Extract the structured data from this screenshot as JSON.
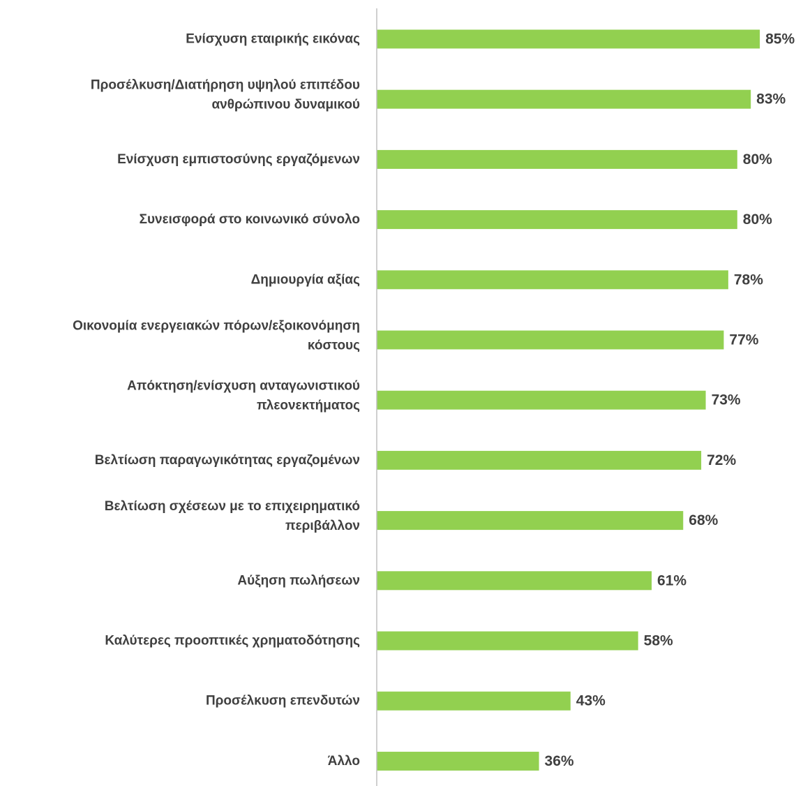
{
  "chart_data": {
    "type": "bar",
    "orientation": "horizontal",
    "categories": [
      [
        "Ενίσχυση εταιρικής εικόνας"
      ],
      [
        "Προσέλκυση/Διατήρηση υψηλού επιπέδου",
        "ανθρώπινου δυναμικού"
      ],
      [
        "Ενίσχυση εμπιστοσύνης εργαζόμενων"
      ],
      [
        "Συνεισφορά στο κοινωνικό σύνολο"
      ],
      [
        "Δημιουργία αξίας"
      ],
      [
        "Οικονομία ενεργειακών πόρων/εξοικονόμηση",
        "κόστους"
      ],
      [
        "Απόκτηση/ενίσχυση ανταγωνιστικού",
        "πλεονεκτήματος"
      ],
      [
        "Βελτίωση παραγωγικότητας εργαζομένων"
      ],
      [
        "Βελτίωση σχέσεων με το επιχειρηματικό",
        "περιβάλλον"
      ],
      [
        "Αύξηση πωλήσεων"
      ],
      [
        "Καλύτερες προοπτικές χρηματοδότησης"
      ],
      [
        "Προσέλκυση επενδυτών"
      ],
      [
        "Άλλο"
      ]
    ],
    "values": [
      85,
      83,
      80,
      80,
      78,
      77,
      73,
      72,
      68,
      61,
      58,
      43,
      36
    ],
    "value_labels": [
      "85%",
      "83%",
      "80%",
      "80%",
      "78%",
      "77%",
      "73%",
      "72%",
      "68%",
      "61%",
      "58%",
      "43%",
      "36%"
    ],
    "xlim": [
      0,
      100
    ],
    "grid": false,
    "legend": "none",
    "colors": {
      "bar": "#92d050",
      "axis": "#bfbfbf",
      "text": "#404040"
    }
  }
}
